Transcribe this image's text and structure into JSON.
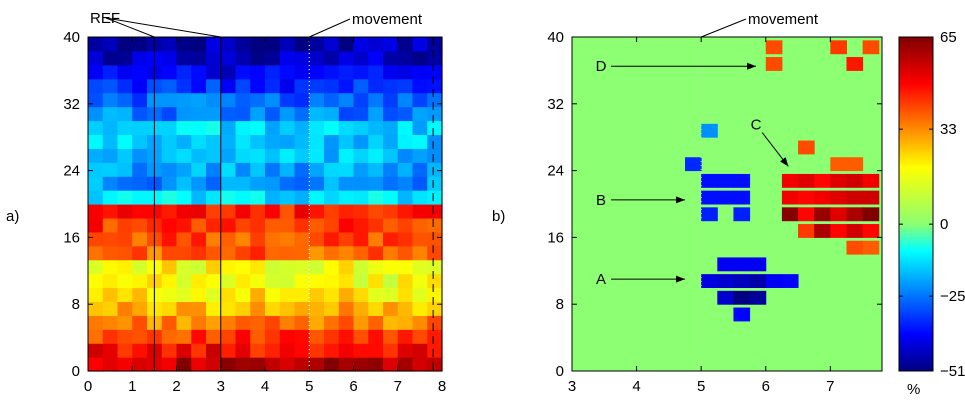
{
  "panels": {
    "a_label": "a)",
    "b_label": "b)"
  },
  "chart_data": [
    {
      "type": "heatmap",
      "title": "",
      "xlabel": "",
      "ylabel": "",
      "xlim": [
        0,
        8
      ],
      "ylim": [
        0,
        40
      ],
      "xticks": [
        "0",
        "1",
        "2",
        "3",
        "4",
        "5",
        "6",
        "7",
        "8"
      ],
      "yticks": [
        "0",
        "8",
        "16",
        "24",
        "32",
        "40"
      ],
      "grid": {
        "nx": 24,
        "ny": 24
      },
      "row_profile": [
        58,
        50,
        44,
        36,
        30,
        24,
        20,
        22,
        40,
        42,
        45,
        47,
        -10,
        -20,
        -18,
        -16,
        -14,
        -12,
        -22,
        -25,
        -32,
        -38,
        -43,
        -46
      ],
      "ref_label": "REF",
      "ref_lines_x": [
        1.5,
        3.0
      ],
      "movement_label": "movement",
      "movement_x": 5.0,
      "dashed_line_x": 7.8
    },
    {
      "type": "heatmap",
      "title": "",
      "xlabel": "",
      "ylabel": "",
      "xlim": [
        3,
        7.8
      ],
      "ylim": [
        0,
        40
      ],
      "xticks": [
        "3",
        "4",
        "5",
        "6",
        "7"
      ],
      "yticks": [
        "0",
        "8",
        "16",
        "24",
        "32",
        "40"
      ],
      "background_value": 0,
      "cell_size": [
        0.25,
        1.6
      ],
      "cells": [
        {
          "x": 6.0,
          "y": 38,
          "v": 42
        },
        {
          "x": 7.0,
          "y": 38,
          "v": 44
        },
        {
          "x": 7.5,
          "y": 38,
          "v": 42
        },
        {
          "x": 6.0,
          "y": 36,
          "v": 42
        },
        {
          "x": 7.25,
          "y": 36,
          "v": 48
        },
        {
          "x": 5.0,
          "y": 28,
          "v": -20
        },
        {
          "x": 6.5,
          "y": 26,
          "v": 42
        },
        {
          "x": 4.75,
          "y": 24,
          "v": -32
        },
        {
          "x": 7.0,
          "y": 24,
          "v": 40
        },
        {
          "x": 7.25,
          "y": 24,
          "v": 40
        },
        {
          "x": 5.0,
          "y": 22,
          "v": -35
        },
        {
          "x": 5.25,
          "y": 22,
          "v": -35
        },
        {
          "x": 5.5,
          "y": 22,
          "v": -35
        },
        {
          "x": 6.25,
          "y": 22,
          "v": 52
        },
        {
          "x": 6.5,
          "y": 22,
          "v": 54
        },
        {
          "x": 6.75,
          "y": 22,
          "v": 50
        },
        {
          "x": 7.0,
          "y": 22,
          "v": 54
        },
        {
          "x": 7.25,
          "y": 22,
          "v": 56
        },
        {
          "x": 7.5,
          "y": 22,
          "v": 52
        },
        {
          "x": 5.0,
          "y": 20,
          "v": -35
        },
        {
          "x": 5.25,
          "y": 20,
          "v": -35
        },
        {
          "x": 5.5,
          "y": 20,
          "v": -35
        },
        {
          "x": 6.25,
          "y": 20,
          "v": 52
        },
        {
          "x": 6.5,
          "y": 20,
          "v": 50
        },
        {
          "x": 6.75,
          "y": 20,
          "v": 52
        },
        {
          "x": 7.0,
          "y": 20,
          "v": 54
        },
        {
          "x": 7.25,
          "y": 20,
          "v": 56
        },
        {
          "x": 7.5,
          "y": 20,
          "v": 56
        },
        {
          "x": 5.0,
          "y": 18,
          "v": -33
        },
        {
          "x": 5.5,
          "y": 18,
          "v": -33
        },
        {
          "x": 6.25,
          "y": 18,
          "v": 64
        },
        {
          "x": 6.5,
          "y": 18,
          "v": 50
        },
        {
          "x": 6.75,
          "y": 18,
          "v": 62
        },
        {
          "x": 7.0,
          "y": 18,
          "v": 54
        },
        {
          "x": 7.25,
          "y": 18,
          "v": 60
        },
        {
          "x": 7.5,
          "y": 18,
          "v": 65
        },
        {
          "x": 6.5,
          "y": 16,
          "v": 44
        },
        {
          "x": 6.75,
          "y": 16,
          "v": 60
        },
        {
          "x": 7.0,
          "y": 16,
          "v": 50
        },
        {
          "x": 7.25,
          "y": 16,
          "v": 56
        },
        {
          "x": 7.5,
          "y": 16,
          "v": 50
        },
        {
          "x": 7.25,
          "y": 14,
          "v": 42
        },
        {
          "x": 7.5,
          "y": 14,
          "v": 40
        },
        {
          "x": 5.25,
          "y": 12,
          "v": -38
        },
        {
          "x": 5.5,
          "y": 12,
          "v": -38
        },
        {
          "x": 5.75,
          "y": 12,
          "v": -38
        },
        {
          "x": 5.0,
          "y": 10,
          "v": -40
        },
        {
          "x": 5.25,
          "y": 10,
          "v": -42
        },
        {
          "x": 5.5,
          "y": 10,
          "v": -44
        },
        {
          "x": 5.75,
          "y": 10,
          "v": -46
        },
        {
          "x": 6.0,
          "y": 10,
          "v": -38
        },
        {
          "x": 6.25,
          "y": 10,
          "v": -36
        },
        {
          "x": 5.25,
          "y": 8,
          "v": -42
        },
        {
          "x": 5.5,
          "y": 8,
          "v": -51
        },
        {
          "x": 5.75,
          "y": 8,
          "v": -48
        },
        {
          "x": 5.5,
          "y": 6,
          "v": -36
        }
      ],
      "annotations": [
        {
          "label": "A",
          "tx": 3.45,
          "ty": 11,
          "hx": 4.75,
          "hy": 11
        },
        {
          "label": "B",
          "tx": 3.45,
          "ty": 20.5,
          "hx": 4.75,
          "hy": 20.5
        },
        {
          "label": "C",
          "tx": 5.85,
          "ty": 29.5,
          "hx": 6.35,
          "hy": 24.5
        },
        {
          "label": "D",
          "tx": 3.45,
          "ty": 36.5,
          "hx": 5.85,
          "hy": 36.5
        }
      ],
      "movement_label": "movement",
      "movement_x": 5.0
    }
  ],
  "colorbar": {
    "min": -51,
    "max": 65,
    "ticks": [
      {
        "label": "65",
        "value": 65
      },
      {
        "label": "33",
        "value": 33
      },
      {
        "label": "0",
        "value": 0
      },
      {
        "label": "−25",
        "value": -25
      },
      {
        "label": "−51",
        "value": -51
      }
    ],
    "unit": "%"
  }
}
